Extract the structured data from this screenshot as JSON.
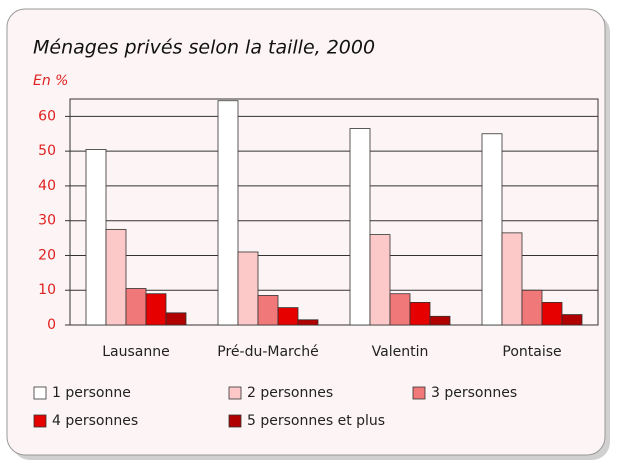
{
  "chart_data": {
    "type": "bar",
    "title": "Ménages privés selon la taille, 2000",
    "y_label": "En %",
    "categories": [
      "Lausanne",
      "Pré-du-Marché",
      "Valentin",
      "Pontaise"
    ],
    "series": [
      {
        "name": "1 personne",
        "color": "#ffffff",
        "values": [
          50.5,
          64.5,
          56.5,
          55
        ]
      },
      {
        "name": "2 personnes",
        "color": "#fcc8c8",
        "values": [
          27.5,
          21,
          26,
          26.5
        ]
      },
      {
        "name": "3 personnes",
        "color": "#f07878",
        "values": [
          10.5,
          8.5,
          9,
          10
        ]
      },
      {
        "name": "4 personnes",
        "color": "#e60000",
        "values": [
          9,
          5,
          6.5,
          6.5
        ]
      },
      {
        "name": "5 personnes et plus",
        "color": "#b00000",
        "values": [
          3.5,
          1.5,
          2.5,
          3
        ]
      }
    ],
    "ylim": [
      0,
      65
    ],
    "yticks": [
      0,
      10,
      20,
      30,
      40,
      50,
      60
    ],
    "grid": true
  }
}
